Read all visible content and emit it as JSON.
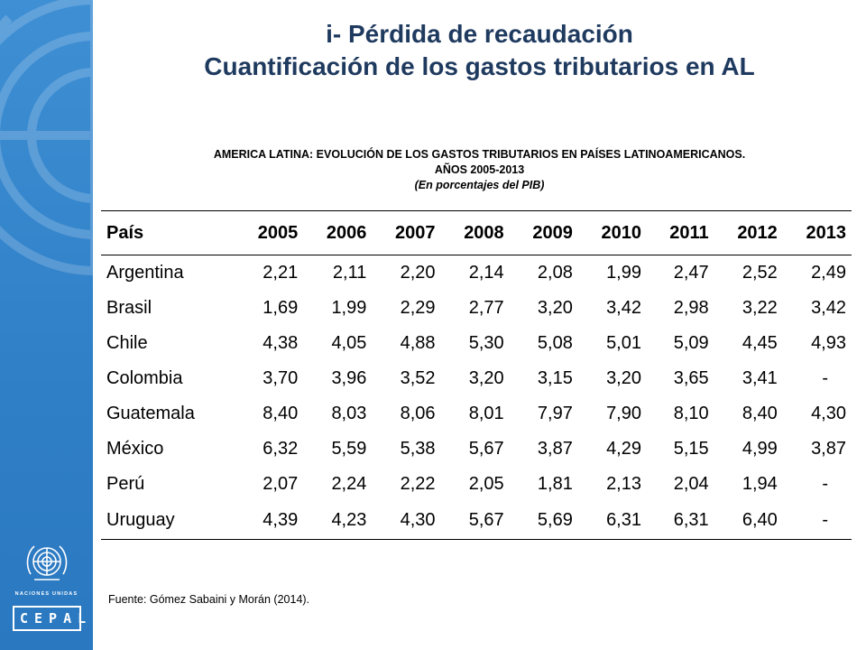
{
  "title": {
    "line1": "i- Pérdida de recaudación",
    "line2": "Cuantificación de los gastos tributarios en AL"
  },
  "caption": {
    "line1": "AMERICA LATINA: EVOLUCIÓN DE LOS GASTOS TRIBUTARIOS EN PAÍSES LATINOAMERICANOS.",
    "line2": "AÑOS 2005-2013",
    "line3": "(En porcentajes del PIB)"
  },
  "table": {
    "headers": [
      "País",
      "2005",
      "2006",
      "2007",
      "2008",
      "2009",
      "2010",
      "2011",
      "2012",
      "2013"
    ],
    "rows": [
      [
        "Argentina",
        "2,21",
        "2,11",
        "2,20",
        "2,14",
        "2,08",
        "1,99",
        "2,47",
        "2,52",
        "2,49"
      ],
      [
        "Brasil",
        "1,69",
        "1,99",
        "2,29",
        "2,77",
        "3,20",
        "3,42",
        "2,98",
        "3,22",
        "3,42"
      ],
      [
        "Chile",
        "4,38",
        "4,05",
        "4,88",
        "5,30",
        "5,08",
        "5,01",
        "5,09",
        "4,45",
        "4,93"
      ],
      [
        "Colombia",
        "3,70",
        "3,96",
        "3,52",
        "3,20",
        "3,15",
        "3,20",
        "3,65",
        "3,41",
        "-"
      ],
      [
        "Guatemala",
        "8,40",
        "8,03",
        "8,06",
        "8,01",
        "7,97",
        "7,90",
        "8,10",
        "8,40",
        "4,30"
      ],
      [
        "México",
        "6,32",
        "5,59",
        "5,38",
        "5,67",
        "3,87",
        "4,29",
        "5,15",
        "4,99",
        "3,87"
      ],
      [
        "Perú",
        "2,07",
        "2,24",
        "2,22",
        "2,05",
        "1,81",
        "2,13",
        "2,04",
        "1,94",
        "-"
      ],
      [
        "Uruguay",
        "4,39",
        "4,23",
        "4,30",
        "5,67",
        "5,69",
        "6,31",
        "6,31",
        "6,40",
        "-"
      ]
    ]
  },
  "source": "Fuente: Gómez Sabaini y Morán (2014).",
  "branding": {
    "un_caption": "NACIONES UNIDAS",
    "cepal_logo": "CEPAL",
    "emblem_icon": "un-emblem-icon",
    "watermark_icon": "un-emblem-watermark-icon"
  },
  "colors": {
    "sidebar": "#2f7fc7",
    "title": "#1f3a5f"
  }
}
